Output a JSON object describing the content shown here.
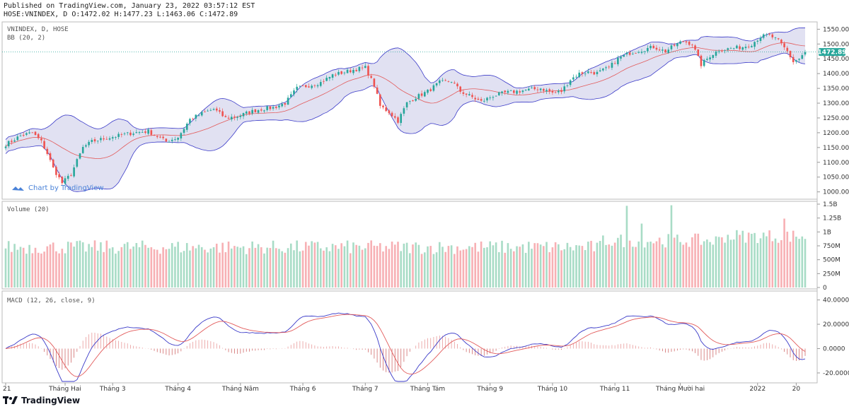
{
  "header": {
    "published": "Published on TradingView.com, January 23, 2022 03:57:12 EST",
    "ohlc": "HOSE:VNINDEX, D O:1472.02 H:1477.23 L:1463.06 C:1472.89"
  },
  "footer": {
    "brand": "TradingView"
  },
  "colors": {
    "up": "#26a69a",
    "down": "#ef5350",
    "upVol": "#a8dcc6",
    "downVol": "#f7b0b4",
    "band": "#dcdcf0",
    "bandLine": "#3a3ac8",
    "basis": "#e25a5a",
    "macd": "#3a3ac8",
    "signal": "#e25a5a",
    "lastPrice": "#26a69a"
  },
  "chart_data": [
    {
      "type": "candlestick",
      "title": "VNINDEX, D, HOSE",
      "indicator": "BB (20, 2)",
      "watermark": "Chart by TradingView",
      "last_price": 1472.89,
      "last_price_label": "1472.89",
      "ylim": [
        980,
        1570
      ],
      "yticks": [
        1000,
        1050,
        1100,
        1150,
        1200,
        1250,
        1300,
        1350,
        1400,
        1450,
        1500,
        1550
      ],
      "ytick_labels": [
        "1000.00",
        "1050.00",
        "1100.00",
        "1150.00",
        "1200.00",
        "1250.00",
        "1300.00",
        "1350.00",
        "1400.00",
        "1450.00",
        "1500.00",
        "1550.00"
      ],
      "x_labels": [
        "21",
        "Tháng Hai",
        "Tháng 3",
        "Tháng 4",
        "Tháng Năm",
        "Tháng 6",
        "Tháng 7",
        "Tháng Tám",
        "Tháng 9",
        "Tháng 10",
        "Tháng 11",
        "Tháng Mười hai",
        "2022",
        "20"
      ],
      "x_label_index": [
        0,
        20,
        36,
        58,
        79,
        100,
        121,
        142,
        163,
        184,
        205,
        227,
        253,
        266
      ],
      "close_anchors": [
        [
          0,
          1160
        ],
        [
          5,
          1190
        ],
        [
          9,
          1200
        ],
        [
          12,
          1170
        ],
        [
          14,
          1130
        ],
        [
          16,
          1080
        ],
        [
          19,
          1030
        ],
        [
          22,
          1060
        ],
        [
          26,
          1150
        ],
        [
          29,
          1170
        ],
        [
          33,
          1180
        ],
        [
          38,
          1190
        ],
        [
          43,
          1200
        ],
        [
          48,
          1205
        ],
        [
          54,
          1170
        ],
        [
          58,
          1185
        ],
        [
          62,
          1245
        ],
        [
          66,
          1265
        ],
        [
          70,
          1280
        ],
        [
          74,
          1250
        ],
        [
          78,
          1255
        ],
        [
          82,
          1270
        ],
        [
          86,
          1280
        ],
        [
          90,
          1285
        ],
        [
          94,
          1300
        ],
        [
          98,
          1350
        ],
        [
          102,
          1360
        ],
        [
          106,
          1370
        ],
        [
          110,
          1395
        ],
        [
          114,
          1405
        ],
        [
          118,
          1415
        ],
        [
          121,
          1420
        ],
        [
          124,
          1360
        ],
        [
          126,
          1290
        ],
        [
          129,
          1270
        ],
        [
          132,
          1240
        ],
        [
          135,
          1300
        ],
        [
          138,
          1320
        ],
        [
          142,
          1340
        ],
        [
          146,
          1370
        ],
        [
          150,
          1375
        ],
        [
          153,
          1340
        ],
        [
          157,
          1320
        ],
        [
          160,
          1305
        ],
        [
          164,
          1325
        ],
        [
          168,
          1335
        ],
        [
          172,
          1340
        ],
        [
          176,
          1345
        ],
        [
          180,
          1350
        ],
        [
          184,
          1335
        ],
        [
          187,
          1340
        ],
        [
          190,
          1380
        ],
        [
          193,
          1400
        ],
        [
          196,
          1405
        ],
        [
          199,
          1402
        ],
        [
          203,
          1420
        ],
        [
          206,
          1450
        ],
        [
          210,
          1470
        ],
        [
          214,
          1480
        ],
        [
          218,
          1490
        ],
        [
          222,
          1475
        ],
        [
          225,
          1495
        ],
        [
          228,
          1510
        ],
        [
          231,
          1500
        ],
        [
          234,
          1430
        ],
        [
          237,
          1460
        ],
        [
          240,
          1480
        ],
        [
          244,
          1485
        ],
        [
          248,
          1490
        ],
        [
          251,
          1500
        ],
        [
          254,
          1525
        ],
        [
          257,
          1530
        ],
        [
          260,
          1510
        ],
        [
          263,
          1475
        ],
        [
          265,
          1440
        ],
        [
          267,
          1450
        ],
        [
          269,
          1472.89
        ]
      ]
    },
    {
      "type": "bar",
      "title": "Volume (20)",
      "ylim": [
        0,
        1500
      ],
      "yticks": [
        0,
        250,
        500,
        750,
        1000,
        1250,
        1500
      ],
      "ytick_labels": [
        "0",
        "250M",
        "500M",
        "750M",
        "1B",
        "1.25B",
        "1.5B"
      ],
      "spikes": {
        "209": 1470,
        "214": 1150,
        "224": 1480,
        "262": 1240
      }
    },
    {
      "type": "line",
      "title": "MACD (12, 26, close, 9)",
      "ylim": [
        -27,
        45
      ],
      "yticks": [
        -20,
        0,
        20,
        40
      ],
      "ytick_labels": [
        "-20.0000",
        "0.0000",
        "20.0000",
        "40.0000"
      ],
      "series": [
        {
          "name": "MACD"
        },
        {
          "name": "Signal"
        },
        {
          "name": "Histogram"
        }
      ]
    }
  ]
}
